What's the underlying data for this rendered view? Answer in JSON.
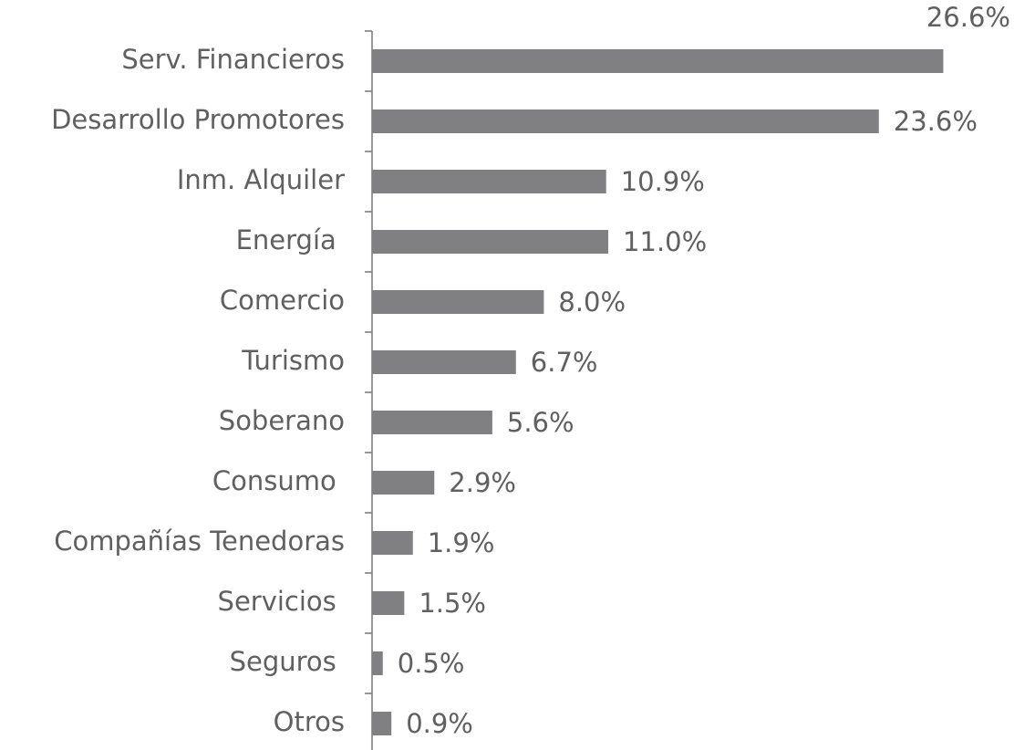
{
  "chart_data": {
    "type": "bar",
    "orientation": "horizontal",
    "categories": [
      "Serv. Financieros",
      "Desarrollo Promotores",
      "Inm. Alquiler",
      "Energía ",
      "Comercio",
      "Turismo",
      "Soberano",
      "Consumo ",
      "Compañías Tenedoras",
      "Servicios ",
      "Seguros ",
      "Otros"
    ],
    "values": [
      26.6,
      23.6,
      10.9,
      11.0,
      8.0,
      6.7,
      5.6,
      2.9,
      1.9,
      1.5,
      0.5,
      0.9
    ],
    "value_labels": [
      "26.6%",
      "23.6%",
      "10.9%",
      "11.0%",
      "8.0%",
      "6.7%",
      "5.6%",
      "2.9%",
      "1.9%",
      "1.5%",
      "0.5%",
      "0.9%"
    ],
    "color": "#808083"
  }
}
